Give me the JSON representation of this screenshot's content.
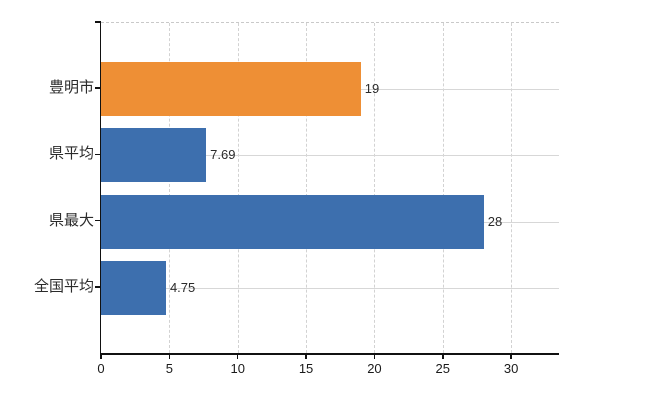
{
  "chart_data": {
    "type": "bar",
    "orientation": "horizontal",
    "title": "",
    "xlabel": "",
    "ylabel": "",
    "categories": [
      "豊明市",
      "県平均",
      "県最大",
      "全国平均"
    ],
    "values": [
      19,
      7.69,
      28,
      4.75
    ],
    "value_labels": [
      "19",
      "7.69",
      "28",
      "4.75"
    ],
    "bar_colors": [
      "#ee8f35",
      "#3d6fae",
      "#3d6fae",
      "#3d6fae"
    ],
    "x_ticks": [
      "0",
      "5",
      "10",
      "15",
      "20",
      "25",
      "30"
    ],
    "x_tick_values": [
      0,
      5,
      10,
      15,
      20,
      25,
      30
    ],
    "xlim": [
      0,
      33.5
    ],
    "legend": "none",
    "grid": {
      "vertical": "dashed",
      "horizontal": "solid lines at category centers",
      "color": "#d7d7d7"
    },
    "colors": {
      "highlight_bar": "#ee8f35",
      "default_bar": "#3d6fae",
      "axis": "#111111",
      "text": "#2b2b2b",
      "background": "#ffffff"
    }
  }
}
